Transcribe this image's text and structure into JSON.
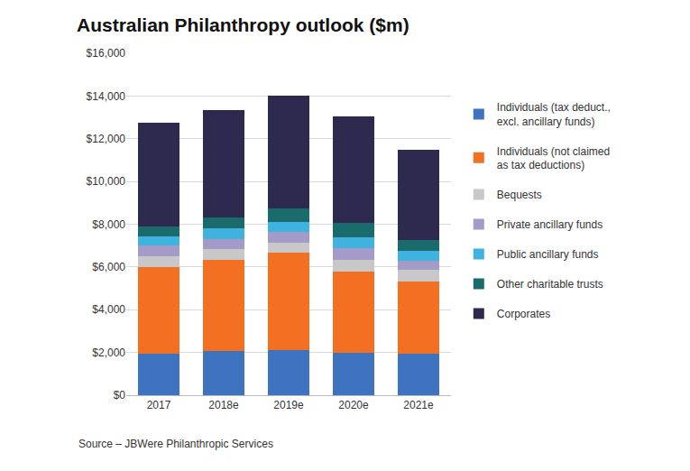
{
  "chart_data": {
    "type": "bar",
    "stacked": true,
    "title": "Australian Philanthropy outlook ($m)",
    "annotations": [
      "Source – JBWere Philanthropic Services"
    ],
    "categories": [
      "2017",
      "2018e",
      "2019e",
      "2020e",
      "2021e"
    ],
    "series": [
      {
        "name": "Individuals (tax deduct.,\nexcl. ancillary funds)",
        "color": "#3e73c0",
        "values": [
          1950,
          2050,
          2100,
          2000,
          1950
        ]
      },
      {
        "name": "Individuals (not claimed\nas tax deductions)",
        "color": "#f36f21",
        "values": [
          4050,
          4300,
          4550,
          3800,
          3350
        ]
      },
      {
        "name": "Bequests",
        "color": "#c8c8c8",
        "values": [
          500,
          500,
          500,
          550,
          550
        ]
      },
      {
        "name": "Private ancillary funds",
        "color": "#a49bc9",
        "values": [
          500,
          450,
          500,
          550,
          450
        ]
      },
      {
        "name": "Public ancillary funds",
        "color": "#3fb2e0",
        "values": [
          450,
          500,
          450,
          500,
          450
        ]
      },
      {
        "name": "Other charitable trusts",
        "color": "#1a6b6b",
        "values": [
          450,
          500,
          650,
          650,
          500
        ]
      },
      {
        "name": "Corporates",
        "color": "#2e2a4f",
        "values": [
          4850,
          5050,
          5250,
          5000,
          4250
        ]
      }
    ],
    "ylim": [
      0,
      16000
    ],
    "yticks": [
      {
        "value": 0,
        "label": "$0"
      },
      {
        "value": 2000,
        "label": "$2,000"
      },
      {
        "value": 4000,
        "label": "$4,000"
      },
      {
        "value": 6000,
        "label": "$6,000"
      },
      {
        "value": 8000,
        "label": "$8,000"
      },
      {
        "value": 10000,
        "label": "$10,000"
      },
      {
        "value": 12000,
        "label": "$12,000"
      },
      {
        "value": 14000,
        "label": "$14,000"
      },
      {
        "value": 16000,
        "label": "$16,000"
      }
    ],
    "grid": true,
    "legend": "right"
  }
}
